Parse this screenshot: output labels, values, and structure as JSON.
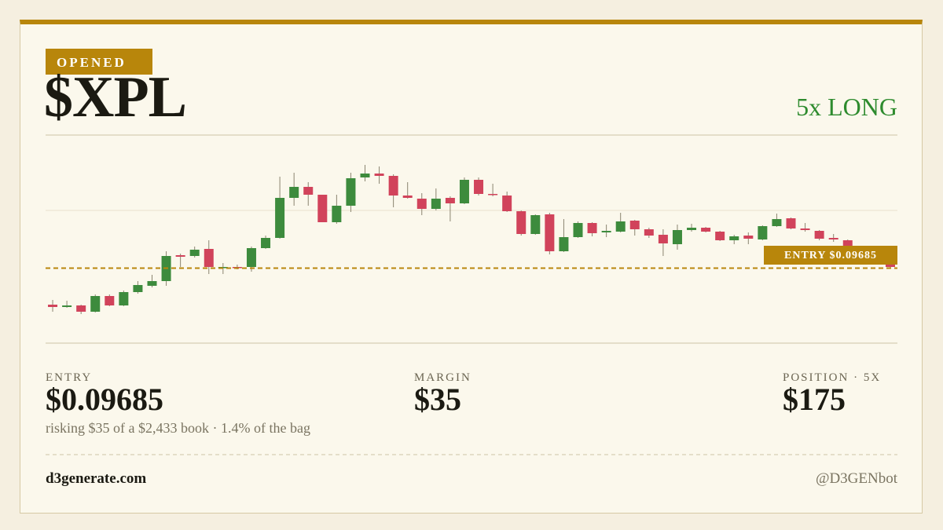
{
  "header": {
    "badge": "OPENED",
    "ticker": "$XPL",
    "side": "5x LONG"
  },
  "chart_data": {
    "type": "candlestick",
    "ylim": [
      0.088,
      0.113
    ],
    "up_color": "#3d8b3d",
    "down_color": "#d1435b",
    "ohlc": [
      [
        0.0922,
        0.0928,
        0.0913,
        0.0919
      ],
      [
        0.0919,
        0.0927,
        0.0918,
        0.0921
      ],
      [
        0.0921,
        0.0922,
        0.091,
        0.0913
      ],
      [
        0.0913,
        0.0935,
        0.0912,
        0.0933
      ],
      [
        0.0933,
        0.0935,
        0.092,
        0.0921
      ],
      [
        0.0921,
        0.094,
        0.092,
        0.0938
      ],
      [
        0.0938,
        0.0952,
        0.0936,
        0.0947
      ],
      [
        0.0946,
        0.096,
        0.0944,
        0.0952
      ],
      [
        0.0952,
        0.099,
        0.0946,
        0.0984
      ],
      [
        0.0985,
        0.0987,
        0.097,
        0.0983
      ],
      [
        0.0984,
        0.0996,
        0.0982,
        0.0992
      ],
      [
        0.0993,
        0.1004,
        0.0961,
        0.097
      ],
      [
        0.0969,
        0.0975,
        0.0961,
        0.097
      ],
      [
        0.097,
        0.0973,
        0.0967,
        0.0969
      ],
      [
        0.097,
        0.0996,
        0.0964,
        0.0994
      ],
      [
        0.0994,
        0.101,
        0.0993,
        0.1007
      ],
      [
        0.1007,
        0.1085,
        0.1006,
        0.1058
      ],
      [
        0.1058,
        0.109,
        0.1048,
        0.1072
      ],
      [
        0.1072,
        0.1078,
        0.1048,
        0.1062
      ],
      [
        0.1062,
        0.1062,
        0.1027,
        0.1027
      ],
      [
        0.1027,
        0.1062,
        0.1025,
        0.1048
      ],
      [
        0.1048,
        0.109,
        0.104,
        0.1083
      ],
      [
        0.1084,
        0.11,
        0.1079,
        0.1089
      ],
      [
        0.1089,
        0.1098,
        0.1076,
        0.1086
      ],
      [
        0.1086,
        0.1088,
        0.1046,
        0.1061
      ],
      [
        0.1061,
        0.1078,
        0.1057,
        0.1058
      ],
      [
        0.1057,
        0.1064,
        0.1036,
        0.1044
      ],
      [
        0.1044,
        0.107,
        0.1042,
        0.1057
      ],
      [
        0.1058,
        0.106,
        0.1028,
        0.1051
      ],
      [
        0.1051,
        0.1084,
        0.105,
        0.1081
      ],
      [
        0.1081,
        0.1084,
        0.1061,
        0.1063
      ],
      [
        0.1063,
        0.1076,
        0.106,
        0.1062
      ],
      [
        0.1061,
        0.1066,
        0.104,
        0.1041
      ],
      [
        0.1041,
        0.1042,
        0.101,
        0.1012
      ],
      [
        0.1012,
        0.1037,
        0.1011,
        0.1036
      ],
      [
        0.1037,
        0.1039,
        0.0986,
        0.099
      ],
      [
        0.099,
        0.1031,
        0.0989,
        0.1008
      ],
      [
        0.1008,
        0.1028,
        0.1007,
        0.1026
      ],
      [
        0.1026,
        0.1027,
        0.1009,
        0.1013
      ],
      [
        0.1014,
        0.1024,
        0.1008,
        0.1016
      ],
      [
        0.1015,
        0.1039,
        0.1014,
        0.1028
      ],
      [
        0.1029,
        0.103,
        0.101,
        0.1018
      ],
      [
        0.1018,
        0.102,
        0.1007,
        0.101
      ],
      [
        0.1011,
        0.1018,
        0.0984,
        0.1
      ],
      [
        0.0999,
        0.1024,
        0.0992,
        0.1017
      ],
      [
        0.1017,
        0.1025,
        0.1015,
        0.102
      ],
      [
        0.102,
        0.1021,
        0.1014,
        0.1015
      ],
      [
        0.1015,
        0.1016,
        0.1003,
        0.1004
      ],
      [
        0.1004,
        0.1011,
        0.0999,
        0.1009
      ],
      [
        0.101,
        0.1014,
        0.0999,
        0.1006
      ],
      [
        0.1005,
        0.1023,
        0.1004,
        0.1022
      ],
      [
        0.1022,
        0.1038,
        0.1021,
        0.1031
      ],
      [
        0.1032,
        0.1033,
        0.1018,
        0.1019
      ],
      [
        0.1019,
        0.1026,
        0.1015,
        0.1017
      ],
      [
        0.1016,
        0.1017,
        0.1004,
        0.1006
      ],
      [
        0.1007,
        0.1012,
        0.1002,
        0.1005
      ],
      [
        0.1004,
        0.1005,
        0.0992,
        0.0995
      ],
      [
        0.0995,
        0.0997,
        0.0988,
        0.099
      ],
      [
        0.099,
        0.0992,
        0.0978,
        0.098
      ],
      [
        0.098,
        0.0982,
        0.0968,
        0.097
      ]
    ],
    "entry_line": {
      "value": 0.09685,
      "label": "ENTRY $0.09685"
    },
    "entry_color": "#b8860b"
  },
  "stats": [
    {
      "label": "ENTRY",
      "value": "$0.09685",
      "note": "risking $35 of a $2,433 book · 1.4% of the bag"
    },
    {
      "label": "MARGIN",
      "value": "$35"
    },
    {
      "label": "POSITION · 5X",
      "value": "$175"
    }
  ],
  "footer": {
    "site": "d3generate.com",
    "handle": "@D3GENbot"
  }
}
